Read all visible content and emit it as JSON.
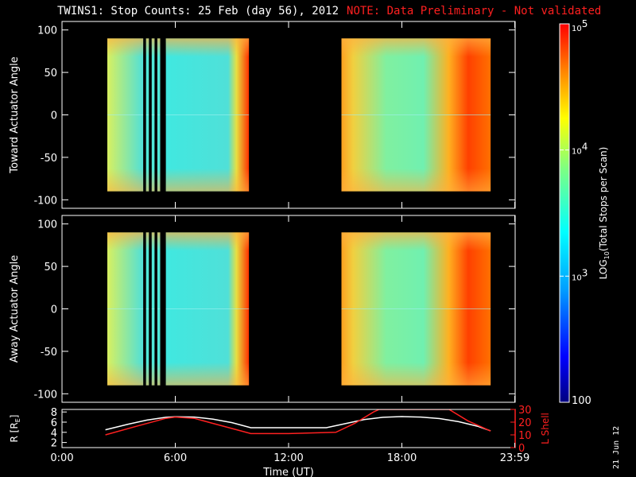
{
  "title": {
    "main": "TWINS1: Stop Counts: 25 Feb (day  56), 2012",
    "note": "NOTE: Data Preliminary - Not validated"
  },
  "stamp": "21 Jun 12",
  "colors": {
    "note": "#ff2020",
    "r_line": "#ffffff",
    "lshell_line": "#ff2020",
    "background": "#000000"
  },
  "chart_data": [
    {
      "type": "heatmap",
      "panel": "toward",
      "ylabel": "Toward Actuator Angle",
      "ylim": [
        -110,
        110
      ],
      "yticks": [
        100,
        50,
        0,
        -50,
        -100
      ],
      "ytick_labels": [
        "100",
        "50",
        "0",
        "-50",
        "-100"
      ],
      "xlim": [
        0,
        24
      ],
      "data_bands_hours": [
        [
          2.4,
          4.3
        ],
        [
          4.45,
          4.6
        ],
        [
          4.75,
          4.9
        ],
        [
          5.05,
          5.2
        ],
        [
          5.5,
          9.9
        ],
        [
          14.8,
          22.7
        ]
      ],
      "data_y_range": [
        -90,
        90
      ]
    },
    {
      "type": "heatmap",
      "panel": "away",
      "ylabel": "Away Actuator Angle",
      "ylim": [
        -110,
        110
      ],
      "yticks": [
        100,
        50,
        0,
        -50,
        -100
      ],
      "ytick_labels": [
        "100",
        "50",
        "0",
        "-50",
        "-100"
      ],
      "xlim": [
        0,
        24
      ],
      "data_bands_hours": [
        [
          2.4,
          4.3
        ],
        [
          4.45,
          4.6
        ],
        [
          4.75,
          4.9
        ],
        [
          5.05,
          5.2
        ],
        [
          5.5,
          9.9
        ],
        [
          14.8,
          22.7
        ]
      ],
      "data_y_range": [
        -90,
        90
      ]
    },
    {
      "type": "line",
      "panel": "orbit",
      "ylabel_left": "R [R",
      "ylabel_left_sub": "E",
      "ylabel_left_end": "]",
      "ylabel_right": "L Shell",
      "ylim_left": [
        1,
        8.5
      ],
      "yticks_left": [
        2,
        4,
        6,
        8
      ],
      "ylim_right": [
        0,
        30
      ],
      "yticks_right": [
        0,
        10,
        20,
        30
      ],
      "xlabel": "Time (UT)",
      "xlim": [
        0,
        24
      ],
      "xticks": [
        0,
        6,
        12,
        18,
        23.98
      ],
      "xtick_labels": [
        "0:00",
        "6:00",
        "12:00",
        "18:00",
        "23:59"
      ],
      "series": [
        {
          "axis": "left",
          "x": [
            2.3,
            3.5,
            4.5,
            5.5,
            6.0,
            7.0,
            8.0,
            9.0,
            10.0,
            12.0,
            14.0,
            15.0,
            16.0,
            17.0,
            18.0,
            19.0,
            20.0,
            21.0,
            22.0,
            22.7
          ],
          "y": [
            4.5,
            5.6,
            6.4,
            6.95,
            7.05,
            7.0,
            6.6,
            5.9,
            4.9,
            4.9,
            4.9,
            5.7,
            6.5,
            6.95,
            7.1,
            7.0,
            6.7,
            6.1,
            5.2,
            4.3
          ]
        },
        {
          "axis": "right",
          "x": [
            2.3,
            4.0,
            5.5,
            6.0,
            7.0,
            8.0,
            9.0,
            10.0,
            12.0,
            14.5,
            15.5,
            16.5,
            16.8,
            20.5,
            21.5,
            22.7
          ],
          "y": [
            10,
            17,
            23,
            24,
            23,
            19,
            15,
            11,
            11,
            12,
            19,
            28,
            30,
            30,
            21,
            13
          ]
        }
      ]
    },
    {
      "type": "colorbar",
      "label_main": "LOG",
      "label_sub": "10",
      "label_rest": "(Total Stops per Scan)",
      "scale": "log",
      "range": [
        100,
        100000
      ],
      "ticks": [
        {
          "value": 100000,
          "base": "10",
          "exp": "5"
        },
        {
          "value": 10000,
          "base": "10",
          "exp": "4"
        },
        {
          "value": 1000,
          "base": "10",
          "exp": "3"
        },
        {
          "value": 100,
          "text": "100"
        }
      ]
    }
  ]
}
